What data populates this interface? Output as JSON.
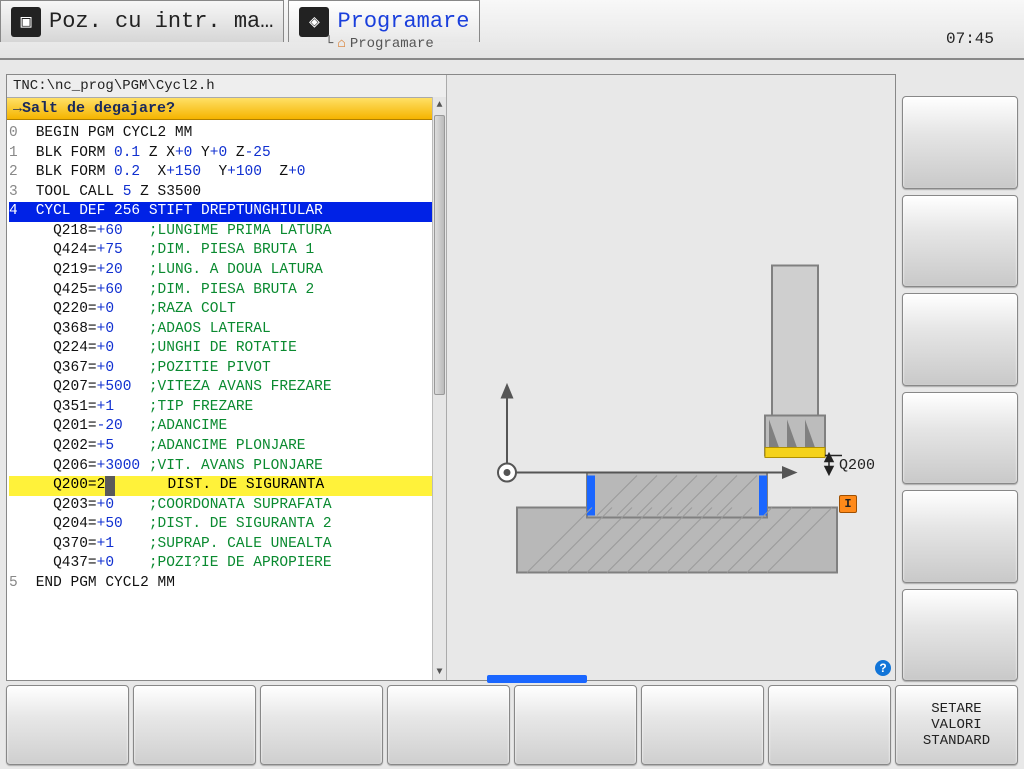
{
  "header": {
    "tab1_title": "Poz. cu intr. ma…",
    "tab2_title": "Programare",
    "breadcrumb": "Programare",
    "clock": "07:45"
  },
  "code": {
    "path": "TNC:\\nc_prog\\PGM\\Cycl2.h",
    "prompt": "→Salt de degajare?"
  },
  "lines": {
    "l0": {
      "n": "0",
      "t": " BEGIN PGM CYCL2 MM"
    },
    "l1": {
      "n": "1",
      "a": " BLK FORM ",
      "b": "0.1",
      "c": " Z X",
      "d": "+0",
      "e": " Y",
      "f": "+0",
      "g": " Z",
      "h": "-25"
    },
    "l2": {
      "n": "2",
      "a": " BLK FORM ",
      "b": "0.2",
      "c": "  X",
      "d": "+150",
      "e": "  Y",
      "f": "+100",
      "g": "  Z",
      "h": "+0"
    },
    "l3": {
      "n": "3",
      "a": " TOOL CALL ",
      "b": "5",
      "c": " Z S3500"
    },
    "l4": {
      "n": "4",
      "t": " CYCL DEF 256 STIFT DREPTUNGHIULAR "
    },
    "p": [
      {
        "q": "Q218=",
        "v": "+60",
        "pad": "   ",
        "c": ";LUNGIME PRIMA LATURA"
      },
      {
        "q": "Q424=",
        "v": "+75",
        "pad": "   ",
        "c": ";DIM. PIESA BRUTA 1"
      },
      {
        "q": "Q219=",
        "v": "+20",
        "pad": "   ",
        "c": ";LUNG. A DOUA LATURA"
      },
      {
        "q": "Q425=",
        "v": "+60",
        "pad": "   ",
        "c": ";DIM. PIESA BRUTA 2"
      },
      {
        "q": "Q220=",
        "v": "+0",
        "pad": "    ",
        "c": ";RAZA COLT"
      },
      {
        "q": "Q368=",
        "v": "+0",
        "pad": "    ",
        "c": ";ADAOS LATERAL"
      },
      {
        "q": "Q224=",
        "v": "+0",
        "pad": "    ",
        "c": ";UNGHI DE ROTATIE"
      },
      {
        "q": "Q367=",
        "v": "+0",
        "pad": "    ",
        "c": ";POZITIE PIVOT"
      },
      {
        "q": "Q207=",
        "v": "+500",
        "pad": "  ",
        "c": ";VITEZA AVANS FREZARE"
      },
      {
        "q": "Q351=",
        "v": "+1",
        "pad": "    ",
        "c": ";TIP FREZARE"
      },
      {
        "q": "Q201=",
        "v": "-20",
        "pad": "   ",
        "c": ";ADANCIME"
      },
      {
        "q": "Q202=",
        "v": "+5",
        "pad": "    ",
        "c": ";ADANCIME PLONJARE"
      },
      {
        "q": "Q206=",
        "v": "+3000",
        "pad": " ",
        "c": ";VIT. AVANS PLONJARE"
      }
    ],
    "hl": {
      "q": "Q200=2",
      "c": "DIST. DE SIGURANTA"
    },
    "p2": [
      {
        "q": "Q203=",
        "v": "+0",
        "pad": "    ",
        "c": ";COORDONATA SUPRAFATA"
      },
      {
        "q": "Q204=",
        "v": "+50",
        "pad": "   ",
        "c": ";DIST. DE SIGURANTA 2"
      },
      {
        "q": "Q370=",
        "v": "+1",
        "pad": "    ",
        "c": ";SUPRAP. CALE UNEALTA"
      },
      {
        "q": "Q437=",
        "v": "+0",
        "pad": "    ",
        "c": ";POZI?IE DE APROPIERE"
      }
    ],
    "l5": {
      "n": "5",
      "t": " END PGM CYCL2 MM"
    }
  },
  "graphic": {
    "q_label": "Q200",
    "info_badge": "I",
    "colors": {
      "bg": "#e8e8e8",
      "block": "#b8b8b8",
      "block_border": "#808080",
      "slot": "#1a66ff",
      "tool_body": "#cfcfcf",
      "tool_dark": "#808080",
      "tool_tip": "#f5d21a",
      "arrow": "#555"
    }
  },
  "softkeys": {
    "bottom": [
      "",
      "",
      "",
      "",
      "",
      "",
      "",
      "SETARE\nVALORI\nSTANDARD"
    ]
  }
}
